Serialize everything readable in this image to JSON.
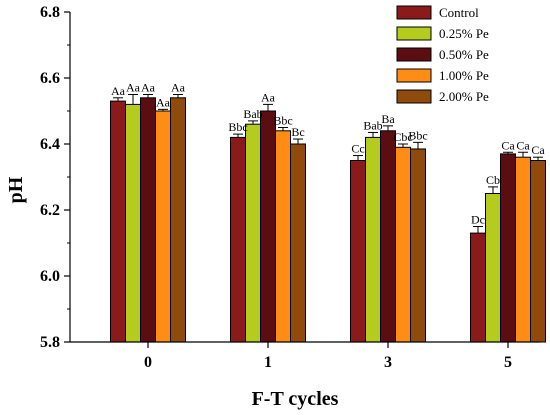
{
  "chart_data": {
    "type": "bar",
    "xlabel": "F-T cycles",
    "ylabel": "pH",
    "ylim": [
      5.8,
      6.8
    ],
    "yticks": [
      "5.8",
      "6.0",
      "6.2",
      "6.4",
      "6.6",
      "6.8"
    ],
    "categories": [
      "0",
      "1",
      "3",
      "5"
    ],
    "legend_position": "top-right",
    "series": [
      {
        "name": "Control",
        "color": "#8b1a1a",
        "values": [
          6.53,
          6.42,
          6.35,
          6.13
        ],
        "errors": [
          0.01,
          0.01,
          0.015,
          0.02
        ],
        "labels": [
          "Aa",
          "Bbc",
          "Cc",
          "Dc"
        ]
      },
      {
        "name": "0.25% Pe",
        "color": "#b5cc1e",
        "values": [
          6.52,
          6.46,
          6.42,
          6.25
        ],
        "errors": [
          0.03,
          0.01,
          0.015,
          0.02
        ],
        "labels": [
          "Aa",
          "Bab",
          "Bab",
          "Cb"
        ]
      },
      {
        "name": "0.50% Pe",
        "color": "#5a0e12",
        "values": [
          6.54,
          6.5,
          6.44,
          6.37
        ],
        "errors": [
          0.01,
          0.02,
          0.015,
          0.005
        ],
        "labels": [
          "Aa",
          "Aa",
          "Ba",
          "Ca"
        ]
      },
      {
        "name": "1.00% Pe",
        "color": "#ff8c14",
        "values": [
          6.5,
          6.44,
          6.39,
          6.36
        ],
        "errors": [
          0.005,
          0.01,
          0.01,
          0.015
        ],
        "labels": [
          "Aa",
          "Bbc",
          "Cbc",
          "Ca"
        ]
      },
      {
        "name": "2.00% Pe",
        "color": "#8f4a0c",
        "values": [
          6.54,
          6.4,
          6.385,
          6.35
        ],
        "errors": [
          0.01,
          0.015,
          0.02,
          0.01
        ],
        "labels": [
          "Aa",
          "Bc",
          "Bbc",
          "Ca"
        ]
      }
    ]
  }
}
